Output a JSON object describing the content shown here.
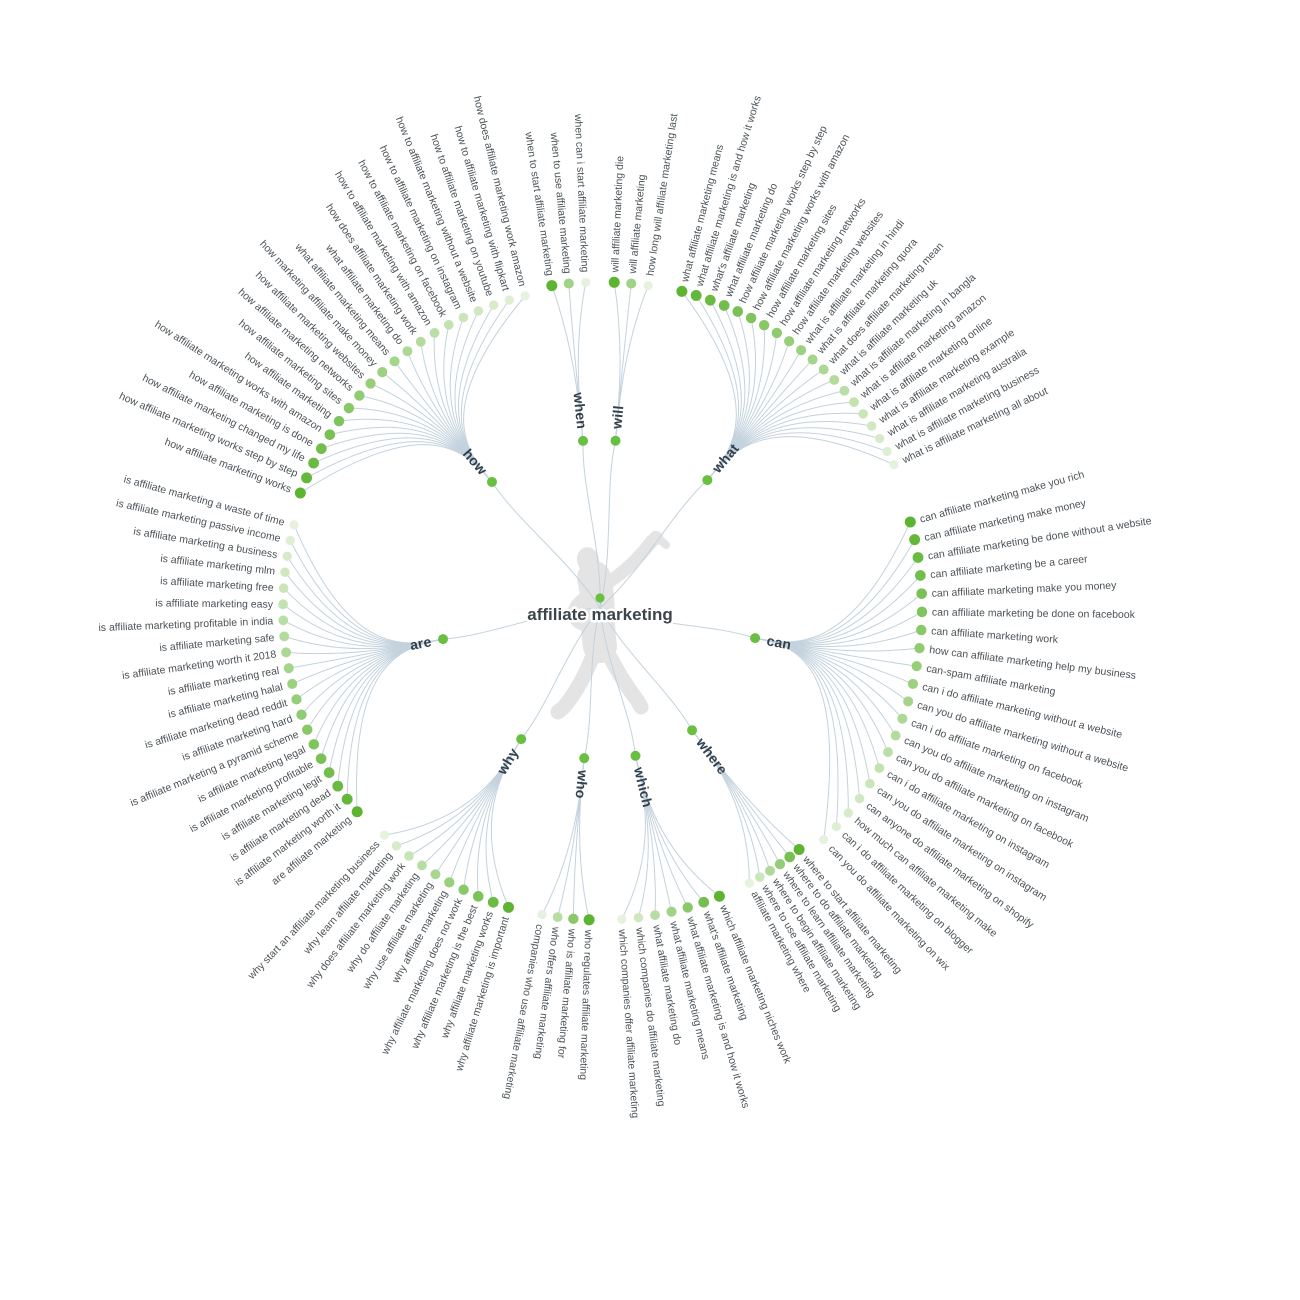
{
  "title": "affiliate marketing",
  "colors": {
    "edge": "#c3d2dd",
    "dot_dark": "#5cb431",
    "dot_light": "#e6f2dd",
    "hub_dot": "#68bf41",
    "center_dot": "#68bf41",
    "leaf_text": "#4b5257",
    "hub_text": "#32404d",
    "title_text": "#3e454a",
    "silhouette": "#e4e4e4"
  },
  "branches": [
    {
      "label": "what",
      "leaves": [
        "what affiliate marketing means",
        "what affiliate marketing is and how it works",
        "what's affiliate marketing",
        "what affiliate marketing do",
        "how affiliate marketing works step by step",
        "how affiliate marketing works with amazon",
        "how affiliate marketing sites",
        "how affiliate marketing networks",
        "how affiliate marketing websites",
        "what is affiliate marketing in hindi",
        "what is affiliate marketing quora",
        "what does affiliate marketing mean",
        "what is affiliate marketing uk",
        "what is affiliate marketing in bangla",
        "what is affiliate marketing amazon",
        "what is affiliate marketing online",
        "what is affiliate marketing example",
        "what is affiliate marketing australia",
        "what is affiliate marketing business",
        "what is affiliate marketing all about"
      ]
    },
    {
      "label": "can",
      "leaves": [
        "can affiliate marketing make you rich",
        "can affiliate marketing make money",
        "can affiliate marketing be done without a website",
        "can affiliate marketing be a career",
        "can affiliate marketing make you money",
        "can affiliate marketing be done on facebook",
        "can affiliate marketing work",
        "how can affiliate marketing help my business",
        "can-spam affiliate marketing",
        "can i do affiliate marketing without a website",
        "can you do affiliate marketing without a website",
        "can i do affiliate marketing on facebook",
        "can you do affiliate marketing on instagram",
        "can you do affiliate marketing on facebook",
        "can i do affiliate marketing on instagram",
        "can you do affiliate marketing on instagram",
        "can anyone do affiliate marketing on shopify",
        "how much can affiliate marketing make",
        "can i do affiliate marketing on blogger",
        "can you do affiliate marketing on wix"
      ]
    },
    {
      "label": "where",
      "leaves": [
        "where to start affiliate marketing",
        "where to do affiliate marketing",
        "where to learn affiliate marketing",
        "where to begin affiliate marketing",
        "where to use affiliate marketing",
        "affiliate marketing where"
      ]
    },
    {
      "label": "which",
      "leaves": [
        "which affiliate marketing niches work",
        "what's affiliate marketing",
        "what affiliate marketing is and how it works",
        "what affiliate marketing means",
        "what affiliate marketing do",
        "which companies do affiliate marketing",
        "which companies offer affiliate marketing"
      ]
    },
    {
      "label": "who",
      "leaves": [
        "who regulates affiliate marketing",
        "who is affiliate marketing for",
        "who offers affiliate marketing",
        "companies who use affiliate marketing"
      ]
    },
    {
      "label": "why",
      "leaves": [
        "why affiliate marketing is important",
        "why affiliate marketing works",
        "why affiliate marketing is the best",
        "why affiliate marketing does not work",
        "why affiliate marketing",
        "why use affiliate marketing",
        "why do affiliate marketing",
        "why does affiliate marketing work",
        "why learn affiliate marketing",
        "why start an affiliate marketing business"
      ]
    },
    {
      "label": "are",
      "leaves": [
        "are affiliate marketing",
        "is affiliate marketing worth it",
        "is affiliate marketing dead",
        "is affiliate marketing legit",
        "is affiliate marketing profitable",
        "is affiliate marketing legal",
        "is affiliate marketing a pyramid scheme",
        "is affiliate marketing hard",
        "is affiliate marketing dead reddit",
        "is affiliate marketing halal",
        "is affiliate marketing real",
        "is affiliate marketing worth it 2018",
        "is affiliate marketing safe",
        "is affiliate marketing profitable in india",
        "is affiliate marketing easy",
        "is affiliate marketing free",
        "is affiliate marketing mlm",
        "is affiliate marketing a business",
        "is affiliate marketing passive income",
        "is affiliate marketing a waste of time"
      ]
    },
    {
      "label": "how",
      "leaves": [
        "how affiliate marketing works",
        "how affiliate marketing works step by step",
        "how affiliate marketing changed my life",
        "how affiliate marketing is done",
        "how affiliate marketing works with amazon",
        "how affiliate marketing",
        "how affiliate marketing sites",
        "how affiliate marketing networks",
        "how affiliate marketing websites",
        "how marketing affiliate make money",
        "what affiliate marketing means",
        "what affiliate marketing do",
        "how does affiliate marketing work",
        "how to affiliate marketing with amazon",
        "how to affiliate marketing on facebook",
        "how to affiliate marketing on instagram",
        "how to affiliate marketing without a website",
        "how to affiliate marketing on youtube",
        "how to affiliate marketing with flipkart",
        "how does affiliate marketing work amazon"
      ]
    },
    {
      "label": "when",
      "leaves": [
        "when to start affiliate marketing",
        "when to use affiliate marketing",
        "when can i start affiliate marketing"
      ]
    },
    {
      "label": "will",
      "leaves": [
        "will affiliate marketing die",
        "will affiliate marketing",
        "how long will affiliate marketing last"
      ]
    }
  ]
}
